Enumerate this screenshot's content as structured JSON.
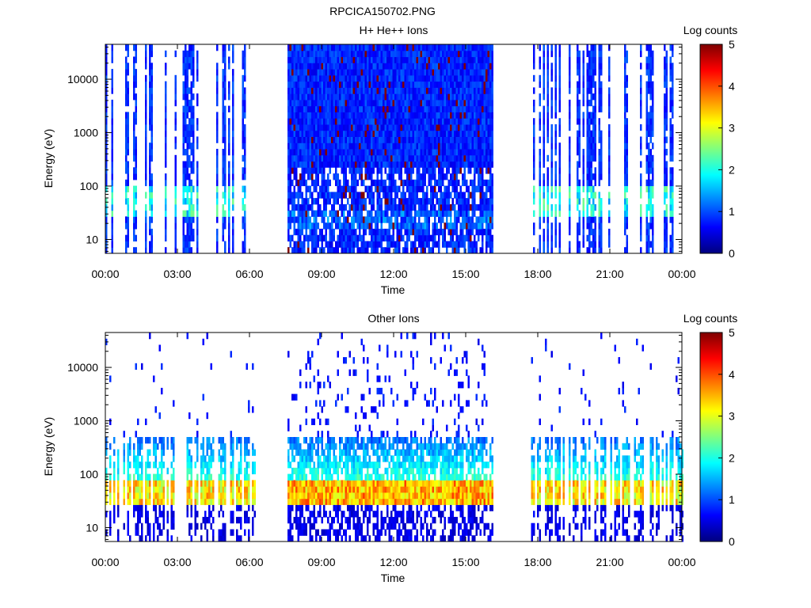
{
  "figure_title": "RPCICA150702.PNG",
  "chart_data": [
    {
      "type": "heatmap",
      "title": "H+ He++ Ions",
      "xlabel": "Time",
      "ylabel": "Energy (eV)",
      "y_scale": "log",
      "ylim": [
        5.5,
        45000
      ],
      "x_range_hours": [
        0,
        24
      ],
      "x_tick_labels": [
        "00:00",
        "03:00",
        "06:00",
        "09:00",
        "12:00",
        "15:00",
        "18:00",
        "21:00",
        "00:00"
      ],
      "x_tick_hours": [
        0,
        3,
        6,
        9,
        12,
        15,
        18,
        21,
        24
      ],
      "y_tick_labels": [
        "10",
        "100",
        "1000",
        "10000"
      ],
      "y_tick_values": [
        10,
        100,
        1000,
        10000
      ],
      "data_gaps_hours": [
        [
          6.2,
          7.5
        ],
        [
          16.1,
          17.6
        ]
      ],
      "colorbar": {
        "label": "Log counts",
        "range": [
          0,
          5
        ],
        "tick_labels": [
          "0",
          "1",
          "2",
          "3",
          "4",
          "5"
        ]
      }
    },
    {
      "type": "heatmap",
      "title": "Other Ions",
      "xlabel": "Time",
      "ylabel": "Energy (eV)",
      "y_scale": "log",
      "ylim": [
        5.5,
        45000
      ],
      "x_range_hours": [
        0,
        24
      ],
      "x_tick_labels": [
        "00:00",
        "03:00",
        "06:00",
        "09:00",
        "12:00",
        "15:00",
        "18:00",
        "21:00",
        "00:00"
      ],
      "x_tick_hours": [
        0,
        3,
        6,
        9,
        12,
        15,
        18,
        21,
        24
      ],
      "y_tick_labels": [
        "10",
        "100",
        "1000",
        "10000"
      ],
      "y_tick_values": [
        10,
        100,
        1000,
        10000
      ],
      "data_gaps_hours": [
        [
          6.2,
          7.5
        ],
        [
          16.1,
          17.6
        ]
      ],
      "colorbar": {
        "label": "Log counts",
        "range": [
          0,
          5
        ],
        "tick_labels": [
          "0",
          "1",
          "2",
          "3",
          "4",
          "5"
        ]
      }
    }
  ],
  "colormap": [
    "#00007f",
    "#0000ff",
    "#007fff",
    "#00ffff",
    "#7fff7f",
    "#ffff00",
    "#ff7f00",
    "#ff0000",
    "#7f0000"
  ]
}
